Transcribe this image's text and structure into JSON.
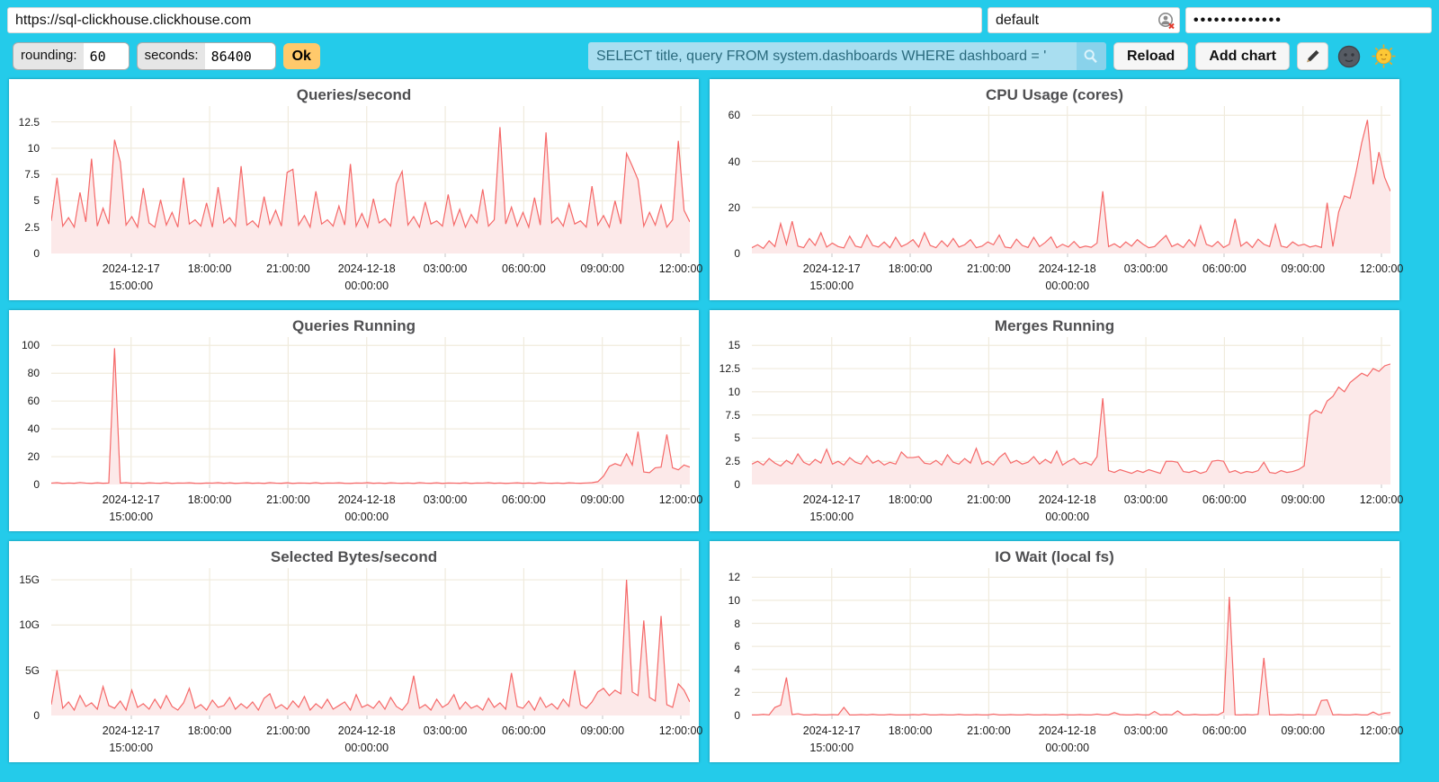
{
  "connection": {
    "url": "https://sql-clickhouse.clickhouse.com",
    "user": "default",
    "password_mask": "•••••••••••••"
  },
  "controls": {
    "rounding_label": "rounding:",
    "rounding_value": "60",
    "seconds_label": "seconds:",
    "seconds_value": "86400",
    "ok_label": "Ok",
    "query": "SELECT title, query FROM system.dashboards WHERE dashboard = '",
    "reload_label": "Reload",
    "add_chart_label": "Add chart",
    "icons": {
      "search": "magnifier-icon",
      "edit": "pencil-icon",
      "dark_theme": "moon-face-icon",
      "light_theme": "sun-face-icon",
      "user_status": "broken-avatar-icon"
    }
  },
  "colors": {
    "background": "#24CBEA",
    "line": "#F56868",
    "fill": "#FCE9E9",
    "grid": "#F0EBDD",
    "query_bg": "#A9DEF0",
    "query_text": "#2A6A7D",
    "ok_bg": "#FFC96B",
    "title_text": "#4F4F51"
  },
  "chart_data": {
    "type": "area",
    "grid_on": true,
    "shared_x_ticks": [
      {
        "frac": 0.125,
        "lines": [
          "2024-12-17",
          "15:00:00"
        ]
      },
      {
        "frac": 0.248,
        "lines": [
          "18:00:00"
        ]
      },
      {
        "frac": 0.371,
        "lines": [
          "21:00:00"
        ]
      },
      {
        "frac": 0.494,
        "lines": [
          "2024-12-18",
          "00:00:00"
        ]
      },
      {
        "frac": 0.617,
        "lines": [
          "03:00:00"
        ]
      },
      {
        "frac": 0.74,
        "lines": [
          "06:00:00"
        ]
      },
      {
        "frac": 0.863,
        "lines": [
          "09:00:00"
        ]
      },
      {
        "frac": 0.986,
        "lines": [
          "12:00:00"
        ]
      }
    ],
    "charts": [
      {
        "title": "Queries/second",
        "ymax": 14,
        "yticks": [
          {
            "v": 0,
            "label": "0"
          },
          {
            "v": 2.5,
            "label": "2.5"
          },
          {
            "v": 5,
            "label": "5"
          },
          {
            "v": 7.5,
            "label": "7.5"
          },
          {
            "v": 10,
            "label": "10"
          },
          {
            "v": 12.5,
            "label": "12.5"
          }
        ],
        "values": [
          3.1,
          7.2,
          2.6,
          3.4,
          2.5,
          5.8,
          3.0,
          9.0,
          2.6,
          4.3,
          2.8,
          10.8,
          8.7,
          2.7,
          3.5,
          2.5,
          6.2,
          2.9,
          2.5,
          5.1,
          2.7,
          3.9,
          2.5,
          7.2,
          2.8,
          3.2,
          2.6,
          4.8,
          2.5,
          6.3,
          2.9,
          3.4,
          2.6,
          8.3,
          2.7,
          3.1,
          2.5,
          5.4,
          2.8,
          4.1,
          2.6,
          7.7,
          8.0,
          2.7,
          3.6,
          2.5,
          5.9,
          2.8,
          3.2,
          2.6,
          4.5,
          2.7,
          8.5,
          2.6,
          3.8,
          2.5,
          5.2,
          2.9,
          3.3,
          2.6,
          6.6,
          7.8,
          2.7,
          3.5,
          2.5,
          4.9,
          2.8,
          3.1,
          2.6,
          5.6,
          2.7,
          4.2,
          2.5,
          3.7,
          2.9,
          6.1,
          2.6,
          3.2,
          12.0,
          2.8,
          4.4,
          2.6,
          3.9,
          2.5,
          5.3,
          2.7,
          11.5,
          2.9,
          3.4,
          2.6,
          4.7,
          2.8,
          3.1,
          2.5,
          6.4,
          2.7,
          3.6,
          2.5,
          5.0,
          2.8,
          9.5,
          8.3,
          7.0,
          2.6,
          3.9,
          2.7,
          4.6,
          2.5,
          3.2,
          10.7,
          4.1,
          3.0
        ]
      },
      {
        "title": "CPU Usage (cores)",
        "ymax": 64,
        "yticks": [
          {
            "v": 0,
            "label": "0"
          },
          {
            "v": 20,
            "label": "20"
          },
          {
            "v": 40,
            "label": "40"
          },
          {
            "v": 60,
            "label": "60"
          }
        ],
        "values": [
          2.5,
          3.8,
          2.2,
          5.5,
          3.0,
          13.0,
          4.0,
          14.0,
          3.2,
          2.5,
          6.5,
          3.5,
          9.0,
          2.8,
          4.5,
          3.0,
          2.4,
          7.5,
          3.2,
          2.6,
          8.0,
          3.5,
          2.8,
          5.0,
          2.5,
          7.0,
          3.0,
          4.2,
          6.0,
          2.8,
          9.0,
          3.5,
          2.5,
          5.5,
          3.0,
          6.5,
          2.8,
          3.8,
          6.0,
          2.5,
          3.2,
          5.0,
          3.8,
          8.0,
          2.8,
          2.4,
          6.2,
          3.5,
          2.6,
          7.0,
          3.0,
          4.8,
          7.2,
          2.5,
          4.0,
          2.8,
          5.2,
          2.5,
          3.2,
          2.7,
          4.5,
          27.0,
          3.0,
          4.2,
          2.6,
          5.0,
          3.2,
          6.0,
          4.0,
          2.5,
          3.0,
          5.5,
          7.8,
          3.0,
          4.2,
          2.6,
          6.0,
          3.2,
          12.0,
          4.0,
          3.0,
          5.2,
          2.6,
          4.0,
          15.0,
          3.2,
          5.0,
          2.6,
          6.2,
          4.0,
          3.0,
          12.5,
          3.2,
          2.6,
          5.0,
          3.4,
          4.0,
          2.8,
          3.4,
          2.6,
          22.0,
          3.0,
          18.0,
          25.0,
          24.0,
          35.0,
          48.0,
          58.0,
          30.0,
          44.0,
          33.0,
          27.0
        ]
      },
      {
        "title": "Queries Running",
        "ymax": 106,
        "yticks": [
          {
            "v": 0,
            "label": "0"
          },
          {
            "v": 20,
            "label": "20"
          },
          {
            "v": 40,
            "label": "40"
          },
          {
            "v": 60,
            "label": "60"
          },
          {
            "v": 80,
            "label": "80"
          },
          {
            "v": 100,
            "label": "100"
          }
        ],
        "values": [
          1.0,
          1.3,
          0.8,
          1.1,
          0.9,
          1.4,
          1.0,
          0.8,
          1.2,
          0.9,
          1.1,
          98.0,
          1.0,
          1.3,
          0.9,
          1.1,
          0.8,
          1.2,
          1.0,
          0.9,
          1.3,
          0.8,
          1.1,
          1.0,
          1.2,
          0.9,
          0.8,
          1.1,
          1.0,
          1.3,
          0.9,
          1.2,
          0.8,
          1.0,
          1.2,
          0.9,
          1.1,
          0.8,
          1.3,
          1.0,
          0.9,
          1.2,
          0.8,
          1.1,
          1.0,
          0.9,
          1.3,
          0.8,
          1.1,
          1.0,
          1.2,
          0.9,
          0.8,
          1.1,
          1.0,
          1.3,
          0.9,
          1.1,
          0.8,
          1.2,
          1.0,
          0.9,
          1.1,
          0.8,
          1.3,
          1.0,
          0.9,
          1.2,
          0.8,
          1.1,
          1.0,
          0.9,
          1.2,
          0.8,
          1.1,
          1.0,
          1.3,
          0.9,
          1.1,
          0.8,
          1.0,
          1.2,
          0.9,
          1.1,
          0.8,
          1.3,
          1.0,
          0.9,
          1.1,
          0.8,
          1.2,
          1.0,
          0.9,
          1.1,
          1.3,
          2.0,
          6.0,
          13.0,
          15.0,
          13.5,
          22.0,
          14.0,
          38.0,
          9.0,
          8.5,
          12.0,
          12.5,
          36.0,
          12.0,
          10.5,
          14.0,
          12.5
        ]
      },
      {
        "title": "Merges Running",
        "ymax": 15.9,
        "yticks": [
          {
            "v": 0,
            "label": "0"
          },
          {
            "v": 2.5,
            "label": "2.5"
          },
          {
            "v": 5,
            "label": "5"
          },
          {
            "v": 7.5,
            "label": "7.5"
          },
          {
            "v": 10,
            "label": "10"
          },
          {
            "v": 12.5,
            "label": "12.5"
          },
          {
            "v": 15,
            "label": "15"
          }
        ],
        "values": [
          2.2,
          2.5,
          2.1,
          2.8,
          2.3,
          2.0,
          2.6,
          2.2,
          3.3,
          2.4,
          2.1,
          2.7,
          2.3,
          3.8,
          2.2,
          2.5,
          2.1,
          2.9,
          2.4,
          2.2,
          3.1,
          2.3,
          2.6,
          2.1,
          2.4,
          2.2,
          3.5,
          2.9,
          2.9,
          3.0,
          2.3,
          2.2,
          2.6,
          2.1,
          3.2,
          2.4,
          2.2,
          2.8,
          2.3,
          3.9,
          2.2,
          2.5,
          2.1,
          2.9,
          3.4,
          2.3,
          2.6,
          2.2,
          2.4,
          3.0,
          2.2,
          2.7,
          2.3,
          3.6,
          2.1,
          2.5,
          2.8,
          2.2,
          2.4,
          2.1,
          3.0,
          9.3,
          1.5,
          1.3,
          1.6,
          1.4,
          1.2,
          1.5,
          1.3,
          1.6,
          1.4,
          1.2,
          2.5,
          2.5,
          2.4,
          1.4,
          1.3,
          1.5,
          1.2,
          1.4,
          2.5,
          2.6,
          2.5,
          1.3,
          1.5,
          1.2,
          1.4,
          1.3,
          1.5,
          2.4,
          1.3,
          1.2,
          1.5,
          1.3,
          1.4,
          1.6,
          2.0,
          7.5,
          8.0,
          7.7,
          9.0,
          9.5,
          10.5,
          10.0,
          11.0,
          11.5,
          12.0,
          11.7,
          12.5,
          12.2,
          12.8,
          13.0
        ]
      },
      {
        "title": "Selected Bytes/second",
        "ymax": 16.3,
        "y_unit": "G",
        "yticks": [
          {
            "v": 0,
            "label": "0"
          },
          {
            "v": 5,
            "label": "5G"
          },
          {
            "v": 10,
            "label": "10G"
          },
          {
            "v": 15,
            "label": "15G"
          }
        ],
        "values": [
          1.2,
          5.0,
          0.8,
          1.5,
          0.6,
          2.2,
          1.0,
          1.4,
          0.7,
          3.2,
          1.1,
          0.8,
          1.6,
          0.6,
          2.8,
          0.9,
          1.3,
          0.7,
          1.8,
          0.8,
          2.2,
          1.0,
          0.6,
          1.4,
          3.0,
          0.8,
          1.2,
          0.6,
          1.7,
          0.9,
          1.1,
          2.0,
          0.7,
          1.3,
          0.8,
          1.5,
          0.6,
          1.9,
          2.4,
          0.8,
          1.2,
          0.7,
          1.6,
          0.9,
          2.1,
          0.6,
          1.3,
          0.8,
          1.8,
          0.7,
          1.1,
          1.5,
          0.6,
          2.3,
          0.9,
          1.2,
          0.8,
          1.6,
          0.7,
          2.0,
          1.0,
          0.6,
          1.4,
          4.4,
          0.8,
          1.2,
          0.6,
          1.8,
          0.9,
          1.3,
          2.3,
          0.7,
          1.5,
          0.8,
          1.1,
          0.6,
          1.9,
          0.9,
          1.4,
          0.7,
          4.7,
          1.0,
          0.8,
          1.6,
          0.6,
          2.0,
          0.9,
          1.3,
          0.7,
          1.8,
          1.0,
          5.0,
          1.2,
          0.8,
          1.5,
          2.6,
          3.0,
          2.2,
          2.8,
          2.4,
          15.0,
          2.6,
          2.2,
          10.5,
          2.0,
          1.6,
          11.0,
          1.2,
          0.9,
          3.5,
          2.8,
          1.5
        ]
      },
      {
        "title": "IO Wait (local fs)",
        "ymax": 12.8,
        "yticks": [
          {
            "v": 0,
            "label": "0"
          },
          {
            "v": 2,
            "label": "2"
          },
          {
            "v": 4,
            "label": "4"
          },
          {
            "v": 6,
            "label": "6"
          },
          {
            "v": 8,
            "label": "8"
          },
          {
            "v": 10,
            "label": "10"
          },
          {
            "v": 12,
            "label": "12"
          }
        ],
        "values": [
          0.05,
          0.05,
          0.1,
          0.05,
          0.7,
          0.9,
          3.3,
          0.08,
          0.15,
          0.05,
          0.05,
          0.1,
          0.05,
          0.05,
          0.08,
          0.05,
          0.7,
          0.05,
          0.05,
          0.08,
          0.05,
          0.1,
          0.05,
          0.05,
          0.1,
          0.05,
          0.05,
          0.05,
          0.08,
          0.05,
          0.12,
          0.05,
          0.05,
          0.08,
          0.05,
          0.05,
          0.1,
          0.05,
          0.05,
          0.08,
          0.05,
          0.05,
          0.12,
          0.05,
          0.05,
          0.08,
          0.05,
          0.05,
          0.1,
          0.05,
          0.05,
          0.08,
          0.05,
          0.05,
          0.1,
          0.05,
          0.05,
          0.08,
          0.05,
          0.05,
          0.12,
          0.05,
          0.05,
          0.25,
          0.08,
          0.05,
          0.05,
          0.1,
          0.05,
          0.05,
          0.35,
          0.05,
          0.08,
          0.05,
          0.4,
          0.05,
          0.05,
          0.1,
          0.05,
          0.05,
          0.08,
          0.05,
          0.3,
          10.3,
          0.06,
          0.05,
          0.08,
          0.05,
          0.1,
          5.0,
          0.06,
          0.05,
          0.08,
          0.05,
          0.05,
          0.1,
          0.05,
          0.05,
          0.06,
          1.3,
          1.35,
          0.05,
          0.08,
          0.05,
          0.05,
          0.1,
          0.05,
          0.05,
          0.3,
          0.05,
          0.2,
          0.25
        ]
      }
    ]
  }
}
